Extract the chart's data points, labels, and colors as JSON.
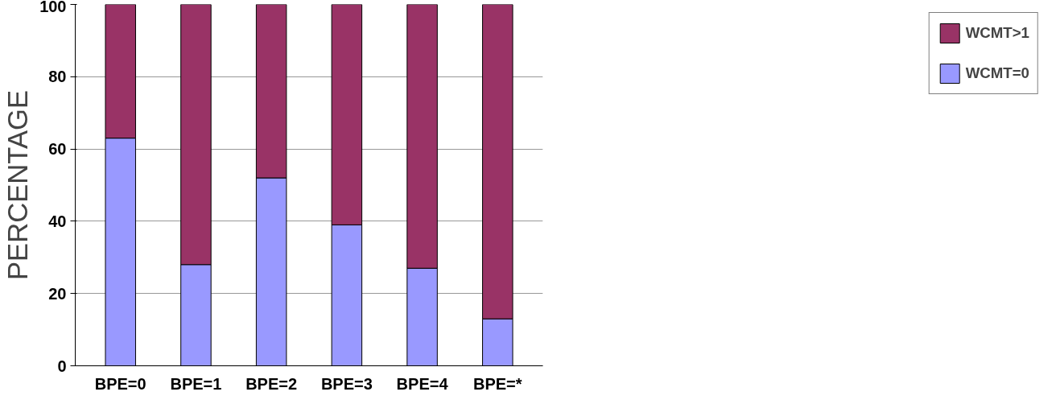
{
  "chart_data": {
    "type": "bar",
    "stacked": true,
    "ylabel": "PERCENTAGE",
    "categories": [
      "BPE=0",
      "BPE=1",
      "BPE=2",
      "BPE=3",
      "BPE=4",
      "BPE=*"
    ],
    "series": [
      {
        "name": "WCMT=0",
        "color": "#9999ff",
        "values": [
          63,
          28,
          52,
          39,
          27,
          13
        ]
      },
      {
        "name": "WCMT>1",
        "color": "#993366",
        "values": [
          37,
          72,
          48,
          61,
          73,
          87
        ]
      }
    ],
    "ylim": [
      0,
      100
    ],
    "yticks": [
      0,
      20,
      40,
      60,
      80,
      100
    ],
    "grid": "y",
    "legend": "right"
  }
}
